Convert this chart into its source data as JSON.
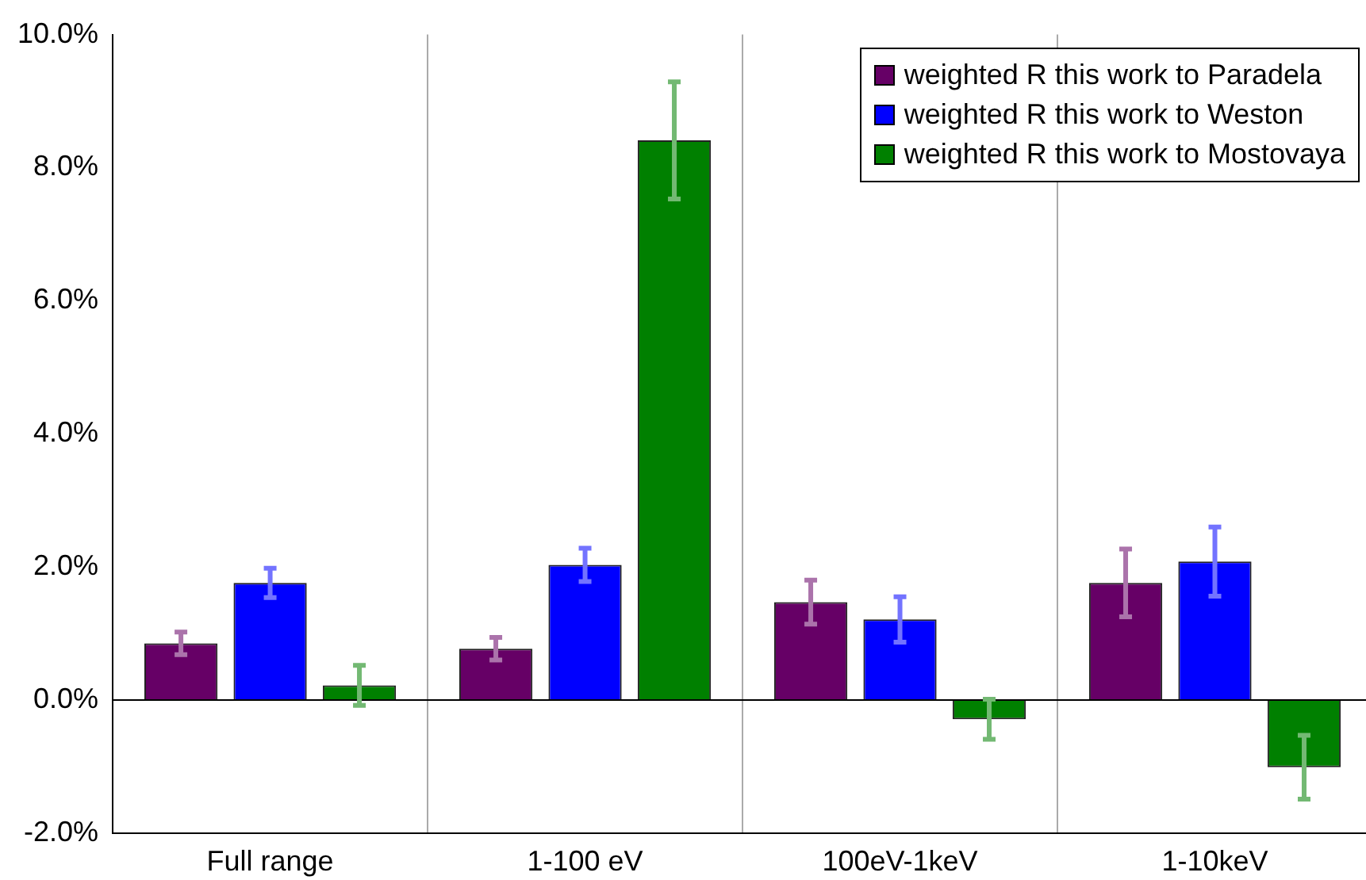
{
  "chart_data": {
    "type": "bar",
    "categories": [
      "Full range",
      "1-100 eV",
      "100eV-1keV",
      "1-10keV"
    ],
    "series": [
      {
        "name": "weighted R this work to Paradela",
        "color": "#660066",
        "values": [
          0.85,
          0.77,
          1.47,
          1.76
        ],
        "errors": [
          0.17,
          0.17,
          0.33,
          0.51
        ]
      },
      {
        "name": "weighted R this work to Weston",
        "color": "#0000ff",
        "values": [
          1.76,
          2.03,
          1.21,
          2.08
        ],
        "errors": [
          0.22,
          0.25,
          0.34,
          0.52
        ]
      },
      {
        "name": "weighted R this work to Mostovaya",
        "color": "#008000",
        "values": [
          0.22,
          8.41,
          -0.29,
          -1.01
        ],
        "errors": [
          0.3,
          0.88,
          0.3,
          0.48
        ]
      }
    ],
    "ylim": [
      -2,
      10
    ],
    "yticks": [
      {
        "value": -2,
        "label": "-2.0%"
      },
      {
        "value": 0,
        "label": "0.0%"
      },
      {
        "value": 2,
        "label": "2.0%"
      },
      {
        "value": 4,
        "label": "4.0%"
      },
      {
        "value": 6,
        "label": "6.0%"
      },
      {
        "value": 8,
        "label": "8.0%"
      },
      {
        "value": 10,
        "label": "10.0%"
      }
    ],
    "grid": "x",
    "legend": "top right"
  }
}
